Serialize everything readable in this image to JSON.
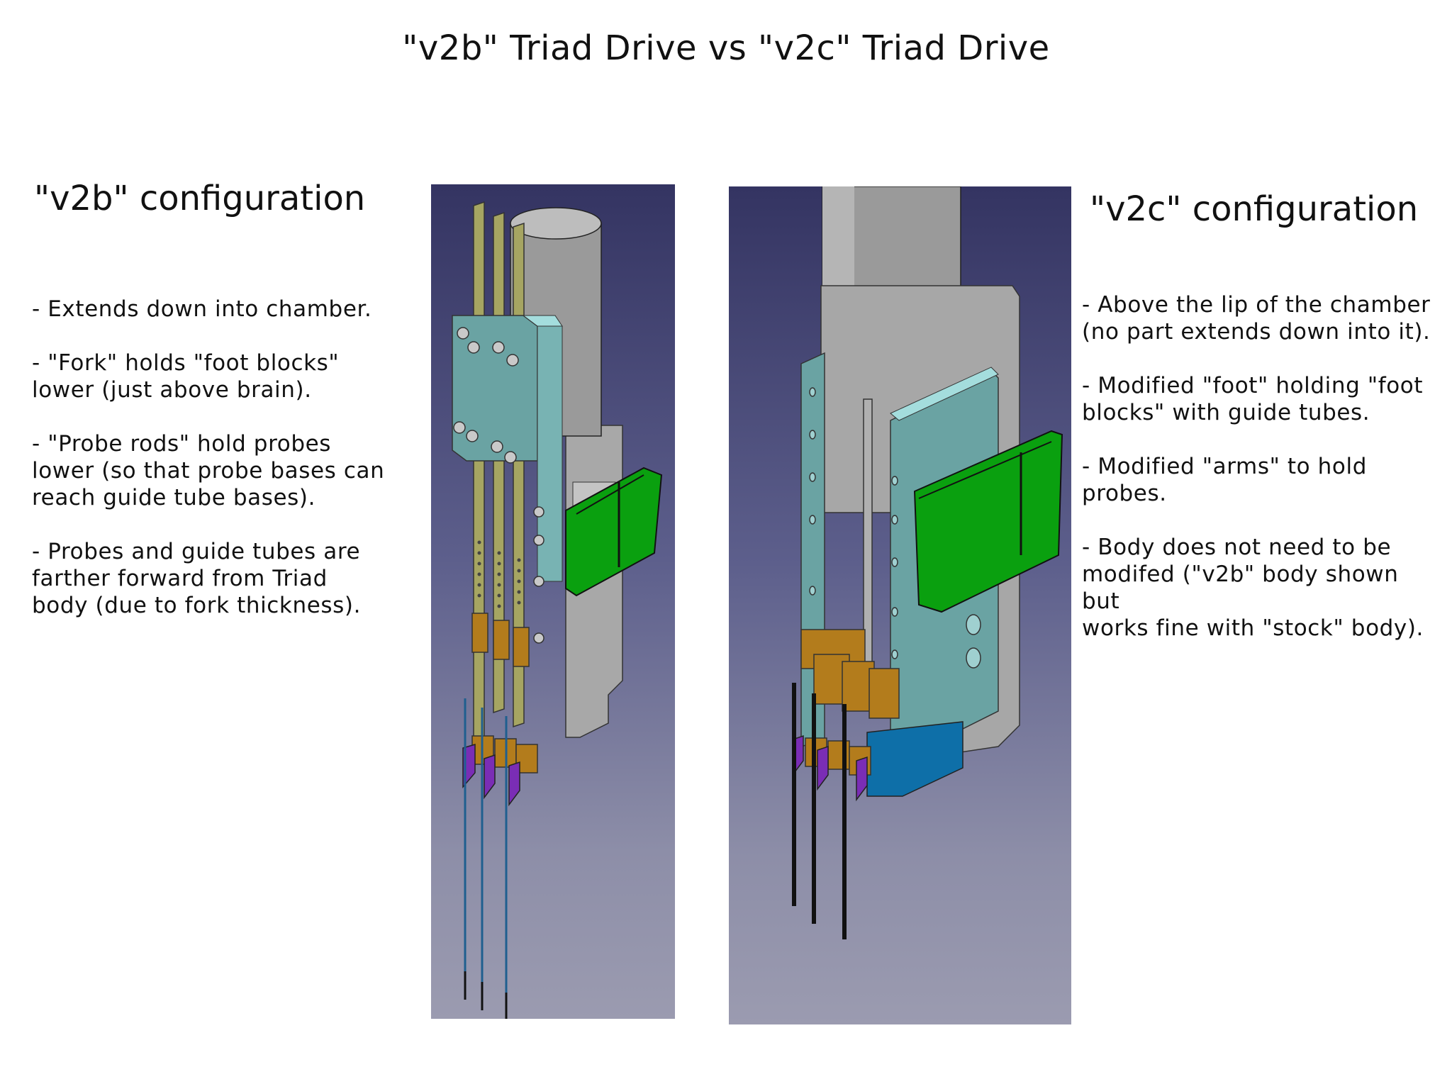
{
  "title": "\"v2b\" Triad Drive vs \"v2c\" Triad Drive",
  "v2b": {
    "heading": "\"v2b\" configuration",
    "notes": [
      "- Extends down into chamber.",
      "- \"Fork\" holds \"foot blocks\"\nlower (just above brain).",
      "- \"Probe rods\" hold probes\nlower (so that probe bases can\nreach guide tube bases).",
      "- Probes and guide tubes are\nfarther forward from Triad\nbody (due to fork thickness)."
    ]
  },
  "v2c": {
    "heading": "\"v2c\" configuration",
    "notes": [
      "- Above the lip of the chamber\n(no part extends down into it).",
      "- Modified \"foot\" holding \"foot\nblocks\" with guide tubes.",
      "- Modified \"arms\" to hold\nprobes.",
      "- Body does not need to be\nmodifed (\"v2b\" body shown but\nworks fine with \"stock\" body)."
    ]
  },
  "colors": {
    "panel_top": "#343462",
    "panel_bottom": "#9b9bb0",
    "body_teal": "#6aa3a3",
    "rod_olive": "#a6a562",
    "block_orange": "#b37c1c",
    "mount_green": "#0aa00f",
    "probe_purple": "#7a2db5",
    "base_blue": "#0e6fa8",
    "cylinder_gray": "#9a9a9a"
  }
}
